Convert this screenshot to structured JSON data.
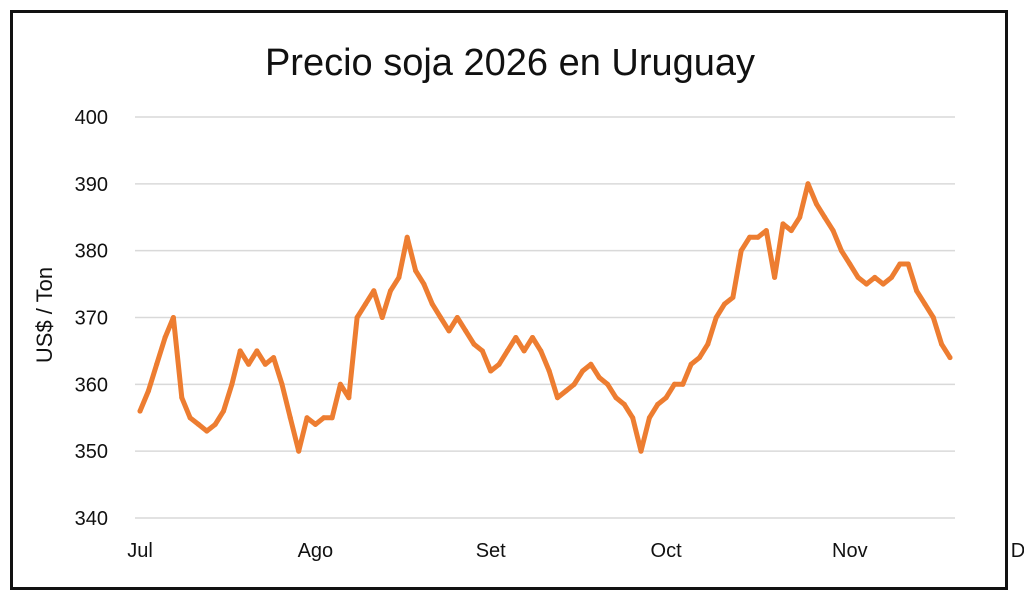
{
  "chart_data": {
    "type": "line",
    "title": "Precio soja 2026 en Uruguay",
    "xlabel": "",
    "ylabel": "US$ / Ton",
    "ylim": [
      340,
      400
    ],
    "yticks": [
      340,
      350,
      360,
      370,
      380,
      390,
      400
    ],
    "grid": true,
    "line_color": "#ED7D31",
    "month_labels": [
      "Jul",
      "Ago",
      "Set",
      "Oct",
      "Nov",
      "Dic"
    ],
    "month_start_index": [
      0,
      21,
      42,
      63,
      85,
      106
    ],
    "series": [
      {
        "values": [
          356,
          359,
          363,
          367,
          370,
          358,
          355,
          354,
          353,
          354,
          356,
          360,
          365,
          363,
          365,
          363,
          364,
          360,
          355,
          350,
          355,
          354,
          355,
          355,
          360,
          358,
          370,
          372,
          374,
          370,
          374,
          376,
          382,
          377,
          375,
          372,
          370,
          368,
          370,
          368,
          366,
          365,
          362,
          363,
          365,
          367,
          365,
          367,
          365,
          362,
          358,
          359,
          360,
          362,
          363,
          361,
          360,
          358,
          357,
          355,
          350,
          355,
          357,
          358,
          360,
          360,
          363,
          364,
          366,
          370,
          372,
          373,
          380,
          382,
          382,
          383,
          376,
          384,
          383,
          385,
          390,
          387,
          385,
          383,
          380,
          378,
          376,
          375,
          376,
          375,
          376,
          378,
          378,
          374,
          372,
          370,
          366,
          364
        ]
      }
    ]
  }
}
